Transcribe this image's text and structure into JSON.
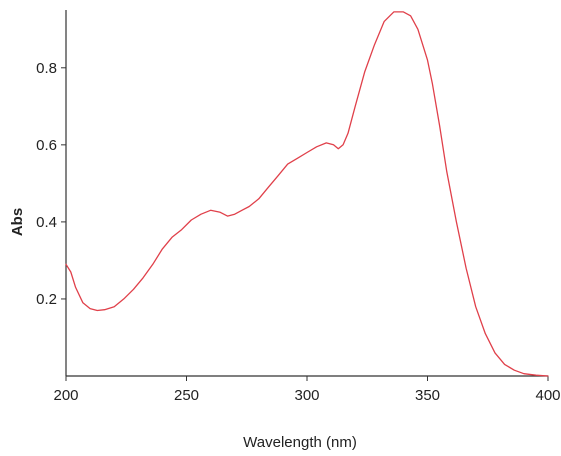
{
  "chart_data": {
    "type": "line",
    "title": "",
    "xlabel": "Wavelength (nm)",
    "ylabel": "Abs",
    "xlim": [
      200,
      400
    ],
    "ylim": [
      0,
      0.95
    ],
    "grid": false,
    "x_ticks": [
      200,
      250,
      300,
      350,
      400
    ],
    "x_tick_labels": [
      "200",
      "250",
      "300",
      "350",
      "400"
    ],
    "y_ticks": [
      0.2,
      0.4,
      0.6,
      0.8
    ],
    "y_tick_labels": [
      "0.2",
      "0.4",
      "0.6",
      "0.8"
    ],
    "series": [
      {
        "color": "#e0404a",
        "x": [
          200,
          202,
          204,
          207,
          210,
          213,
          216,
          220,
          224,
          228,
          232,
          236,
          240,
          244,
          248,
          252,
          256,
          260,
          264,
          267,
          270,
          273,
          276,
          280,
          284,
          288,
          292,
          296,
          300,
          304,
          308,
          311,
          313,
          315,
          317,
          320,
          324,
          328,
          332,
          336,
          340,
          343,
          346,
          348,
          350,
          352,
          355,
          358,
          362,
          366,
          370,
          374,
          378,
          382,
          386,
          390,
          395,
          400
        ],
        "y": [
          0.29,
          0.27,
          0.23,
          0.19,
          0.175,
          0.17,
          0.172,
          0.18,
          0.2,
          0.225,
          0.255,
          0.29,
          0.33,
          0.36,
          0.38,
          0.405,
          0.42,
          0.43,
          0.425,
          0.415,
          0.42,
          0.43,
          0.44,
          0.46,
          0.49,
          0.52,
          0.55,
          0.565,
          0.58,
          0.595,
          0.605,
          0.6,
          0.59,
          0.6,
          0.63,
          0.7,
          0.79,
          0.86,
          0.92,
          0.945,
          0.945,
          0.935,
          0.9,
          0.86,
          0.82,
          0.76,
          0.65,
          0.53,
          0.4,
          0.28,
          0.18,
          0.11,
          0.06,
          0.03,
          0.015,
          0.006,
          0.002,
          0
        ]
      }
    ]
  }
}
